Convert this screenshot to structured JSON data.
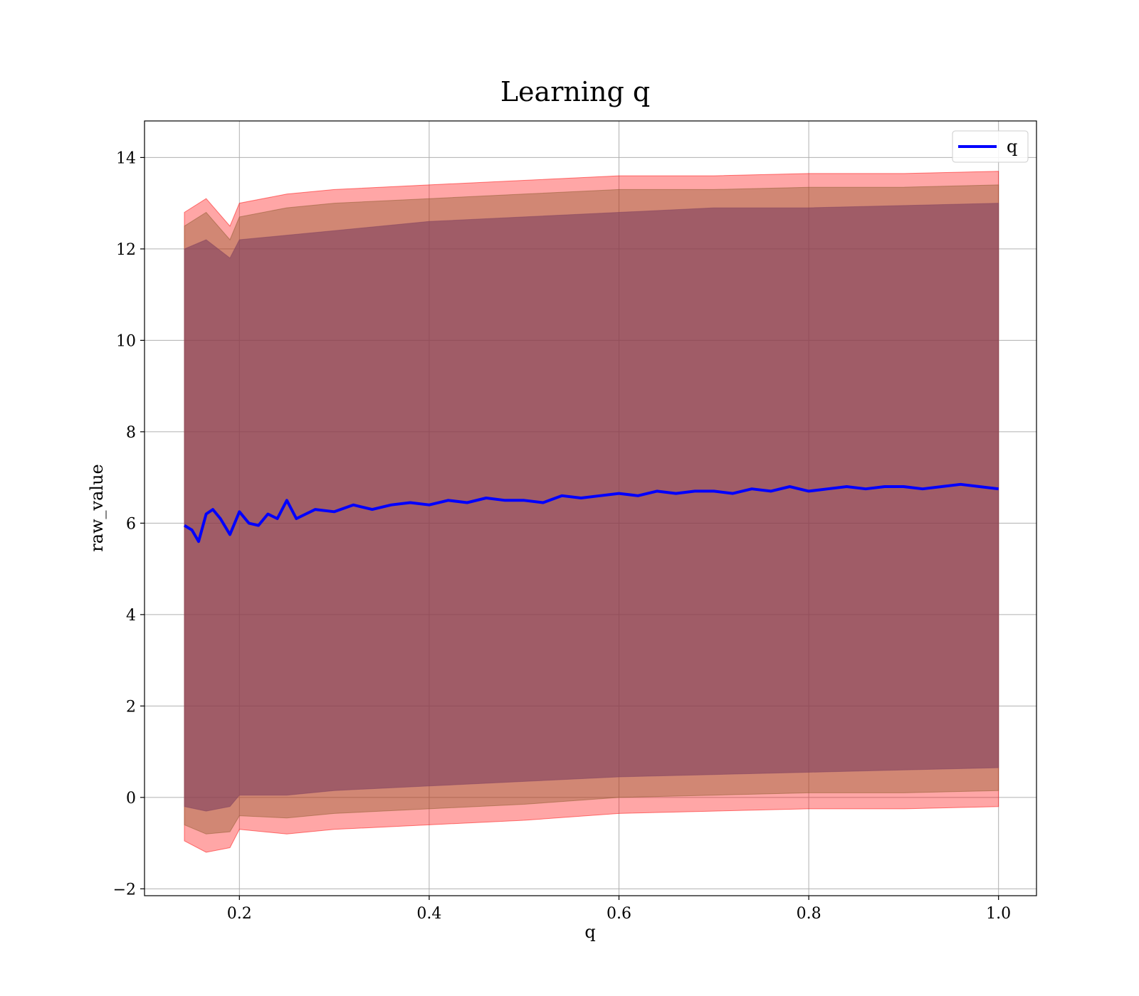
{
  "chart_data": {
    "type": "line",
    "title": "Learning q",
    "xlabel": "q",
    "ylabel": "raw_value",
    "xlim": [
      0.1,
      1.04
    ],
    "ylim": [
      -2.15,
      14.8
    ],
    "xticks": [
      0.2,
      0.4,
      0.6,
      0.8,
      1.0
    ],
    "xtick_labels": [
      "0.2",
      "0.4",
      "0.6",
      "0.8",
      "1.0"
    ],
    "yticks": [
      -2,
      0,
      2,
      4,
      6,
      8,
      10,
      12,
      14
    ],
    "ytick_labels": [
      "−2",
      "0",
      "2",
      "4",
      "6",
      "8",
      "10",
      "12",
      "14"
    ],
    "grid": true,
    "legend": {
      "position": "upper right",
      "entries": [
        "q"
      ]
    },
    "series": [
      {
        "name": "q",
        "color": "#0000ff",
        "x": [
          0.142,
          0.15,
          0.157,
          0.165,
          0.172,
          0.18,
          0.19,
          0.2,
          0.21,
          0.22,
          0.23,
          0.24,
          0.25,
          0.26,
          0.27,
          0.28,
          0.3,
          0.32,
          0.34,
          0.36,
          0.38,
          0.4,
          0.42,
          0.44,
          0.46,
          0.48,
          0.5,
          0.52,
          0.54,
          0.56,
          0.58,
          0.6,
          0.62,
          0.64,
          0.66,
          0.68,
          0.7,
          0.72,
          0.74,
          0.76,
          0.78,
          0.8,
          0.82,
          0.84,
          0.86,
          0.88,
          0.9,
          0.92,
          0.94,
          0.96,
          0.98,
          1.0
        ],
        "y": [
          5.95,
          5.85,
          5.6,
          6.2,
          6.3,
          6.1,
          5.75,
          6.25,
          6.0,
          5.95,
          6.2,
          6.1,
          6.5,
          6.1,
          6.2,
          6.3,
          6.25,
          6.4,
          6.3,
          6.4,
          6.45,
          6.4,
          6.5,
          6.45,
          6.55,
          6.5,
          6.5,
          6.45,
          6.6,
          6.55,
          6.6,
          6.65,
          6.6,
          6.7,
          6.65,
          6.7,
          6.7,
          6.65,
          6.75,
          6.7,
          6.8,
          6.7,
          6.75,
          6.8,
          6.75,
          6.8,
          6.8,
          6.75,
          6.8,
          6.85,
          6.8,
          6.75
        ]
      }
    ],
    "bands": [
      {
        "color": "#ff0000",
        "opacity": 0.35,
        "x": [
          0.142,
          0.165,
          0.19,
          0.2,
          0.25,
          0.3,
          0.4,
          0.5,
          0.6,
          0.7,
          0.8,
          0.9,
          1.0
        ],
        "upper": [
          12.8,
          13.1,
          12.5,
          13.0,
          13.2,
          13.3,
          13.4,
          13.5,
          13.6,
          13.6,
          13.65,
          13.65,
          13.7
        ],
        "lower": [
          -0.95,
          -1.2,
          -1.1,
          -0.7,
          -0.8,
          -0.7,
          -0.6,
          -0.5,
          -0.35,
          -0.3,
          -0.25,
          -0.25,
          -0.2
        ]
      },
      {
        "color": "#8b5a2b",
        "opacity": 0.4,
        "x": [
          0.142,
          0.165,
          0.19,
          0.2,
          0.25,
          0.3,
          0.4,
          0.5,
          0.6,
          0.7,
          0.8,
          0.9,
          1.0
        ],
        "upper": [
          12.5,
          12.8,
          12.2,
          12.7,
          12.9,
          13.0,
          13.1,
          13.2,
          13.3,
          13.3,
          13.35,
          13.35,
          13.4
        ],
        "lower": [
          -0.6,
          -0.8,
          -0.75,
          -0.4,
          -0.45,
          -0.35,
          -0.25,
          -0.15,
          0.0,
          0.05,
          0.1,
          0.1,
          0.15
        ]
      },
      {
        "color": "#7f3f5f",
        "opacity": 0.6,
        "x": [
          0.142,
          0.165,
          0.19,
          0.2,
          0.25,
          0.3,
          0.4,
          0.5,
          0.6,
          0.7,
          0.8,
          0.9,
          1.0
        ],
        "upper": [
          12.0,
          12.2,
          11.8,
          12.2,
          12.3,
          12.4,
          12.6,
          12.7,
          12.8,
          12.9,
          12.9,
          12.95,
          13.0
        ],
        "lower": [
          -0.2,
          -0.3,
          -0.2,
          0.05,
          0.05,
          0.15,
          0.25,
          0.35,
          0.45,
          0.5,
          0.55,
          0.6,
          0.65
        ]
      }
    ]
  }
}
